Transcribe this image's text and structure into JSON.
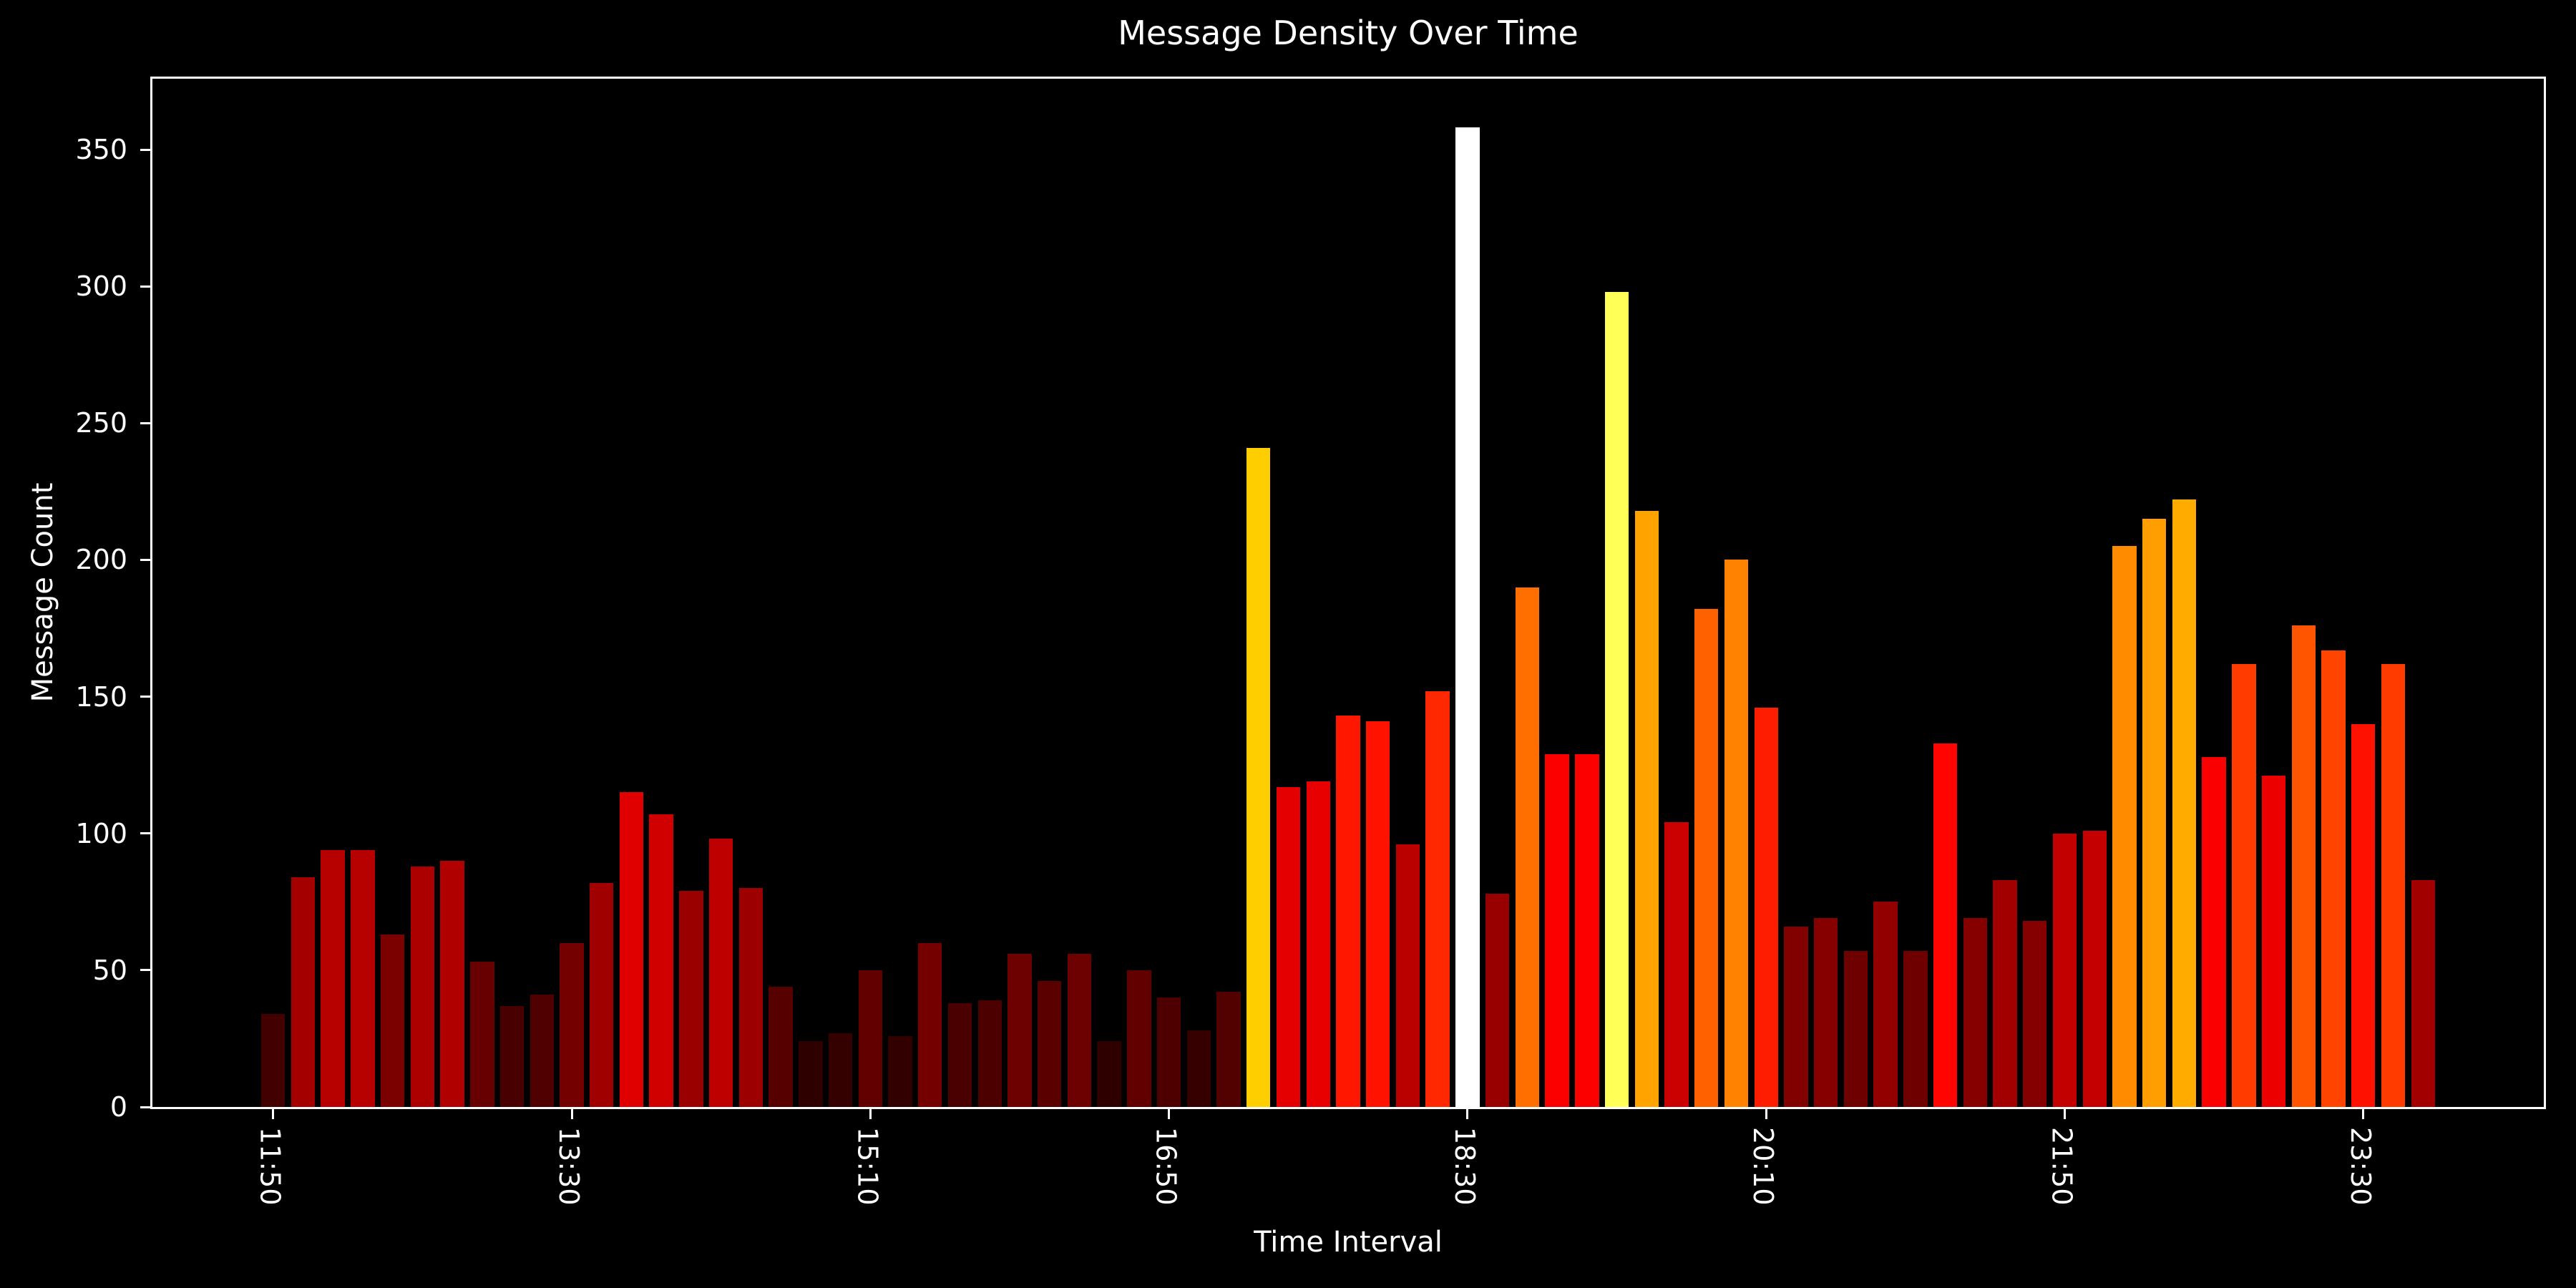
{
  "figure": {
    "background": "#000000",
    "text_color": "#ffffff",
    "axis_color": "#ffffff"
  },
  "chart_data": {
    "type": "bar",
    "title": "Message Density Over Time",
    "xlabel": "Time Interval",
    "ylabel": "Message Count",
    "x": [
      "11:50",
      "12:00",
      "12:10",
      "12:20",
      "12:30",
      "12:40",
      "12:50",
      "13:00",
      "13:10",
      "13:20",
      "13:30",
      "13:40",
      "13:50",
      "14:00",
      "14:10",
      "14:20",
      "14:30",
      "14:40",
      "14:50",
      "15:00",
      "15:10",
      "15:20",
      "15:30",
      "15:40",
      "15:50",
      "16:00",
      "16:10",
      "16:20",
      "16:30",
      "16:40",
      "16:50",
      "17:00",
      "17:10",
      "17:20",
      "17:30",
      "17:40",
      "17:50",
      "18:00",
      "18:10",
      "18:20",
      "18:30",
      "18:40",
      "18:50",
      "19:00",
      "19:10",
      "19:20",
      "19:30",
      "19:40",
      "19:50",
      "20:00",
      "20:10",
      "20:20",
      "20:30",
      "20:40",
      "20:50",
      "21:00",
      "21:10",
      "21:20",
      "21:30",
      "21:40",
      "21:50",
      "22:00",
      "22:10",
      "22:20",
      "22:30",
      "22:40",
      "22:50",
      "23:00",
      "23:10",
      "23:20",
      "23:30",
      "23:40",
      "23:50"
    ],
    "values": [
      34,
      84,
      94,
      94,
      63,
      88,
      90,
      53,
      37,
      41,
      60,
      82,
      115,
      107,
      79,
      98,
      80,
      44,
      24,
      27,
      50,
      26,
      60,
      38,
      39,
      56,
      46,
      56,
      24,
      50,
      40,
      28,
      42,
      241,
      117,
      119,
      143,
      141,
      96,
      152,
      358,
      78,
      190,
      129,
      129,
      298,
      218,
      104,
      182,
      200,
      146,
      66,
      69,
      57,
      75,
      57,
      133,
      69,
      83,
      68,
      100,
      101,
      205,
      215,
      222,
      128,
      162,
      121,
      176,
      167,
      140,
      162,
      83
    ],
    "xtick_indices": [
      0,
      10,
      20,
      30,
      40,
      50,
      60,
      70
    ],
    "xtick_labels": [
      "11:50",
      "13:30",
      "15:10",
      "16:50",
      "18:30",
      "20:10",
      "21:50",
      "23:30"
    ],
    "yticks": [
      0,
      50,
      100,
      150,
      200,
      250,
      300,
      350
    ],
    "ylim": [
      0,
      375.9
    ],
    "grid": false,
    "legend": null,
    "colormap": {
      "name": "hot",
      "vmin": 0,
      "vmax": 358
    }
  }
}
